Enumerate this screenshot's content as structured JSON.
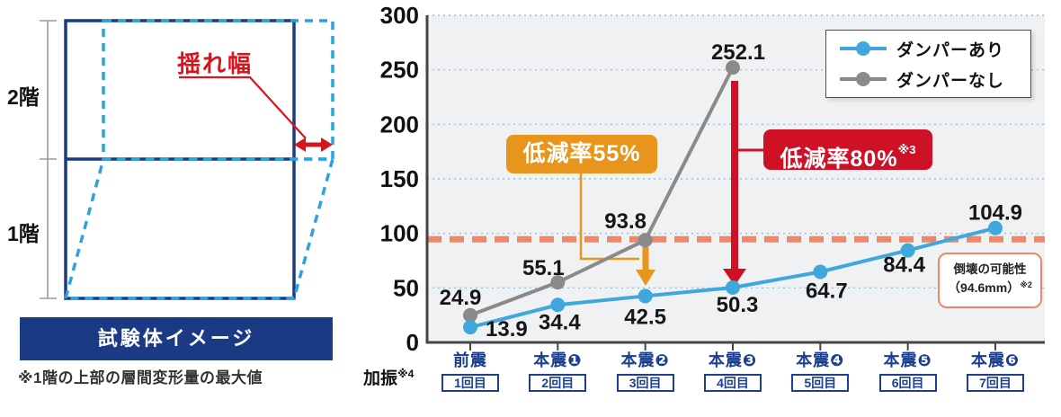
{
  "left_panel": {
    "floor2": "2階",
    "floor1": "1階",
    "sway_label": "揺れ幅",
    "banner": "試験体イメージ",
    "footnote": "※1階の上部の層間変形量の最大値"
  },
  "colors": {
    "navy": "#1b3a84",
    "deformed_blue": "#2ba2e2",
    "diagram_red": "#d7151c",
    "chart_blue": "#3fa7db",
    "chart_gray": "#8a8a8a",
    "orange": "#e8951e",
    "crimson": "#cf1126",
    "salmon": "#ef8668",
    "grid_blue": "#79b9e6"
  },
  "chart_data": {
    "type": "line",
    "title": "",
    "xlabel": "",
    "ylabel": "",
    "categories": [
      "前震",
      "本震❶",
      "本震❷",
      "本震❸",
      "本震❹",
      "本震❺",
      "本震❻"
    ],
    "category_rounds": [
      "1回目",
      "2回目",
      "3回目",
      "4回目",
      "5回目",
      "6回目",
      "7回目"
    ],
    "x_axis_prefix": {
      "label": "加振",
      "sup": "※4"
    },
    "series": [
      {
        "name": "ダンパーあり",
        "color": "#3fa7db",
        "values": [
          13.9,
          34.4,
          42.5,
          50.3,
          64.7,
          84.4,
          104.9
        ]
      },
      {
        "name": "ダンパーなし",
        "color": "#8a8a8a",
        "values": [
          24.9,
          55.1,
          93.8,
          252.1
        ]
      }
    ],
    "ylim": [
      0,
      300
    ],
    "ytick_interval": 50,
    "grid": true,
    "legend_position": "top-right",
    "threshold_line": {
      "value": 94.6,
      "color": "#ef8668",
      "note_title": "倒壊の可能性",
      "note_value": "（94.6mm）",
      "note_sup": "※2"
    },
    "annotations": [
      {
        "text": "低減率55%",
        "sup": "",
        "color": "#e8951e",
        "at_category": "本震❷"
      },
      {
        "text": "低減率80%",
        "sup": "※3",
        "color": "#cf1126",
        "at_category": "本震❸"
      }
    ]
  }
}
